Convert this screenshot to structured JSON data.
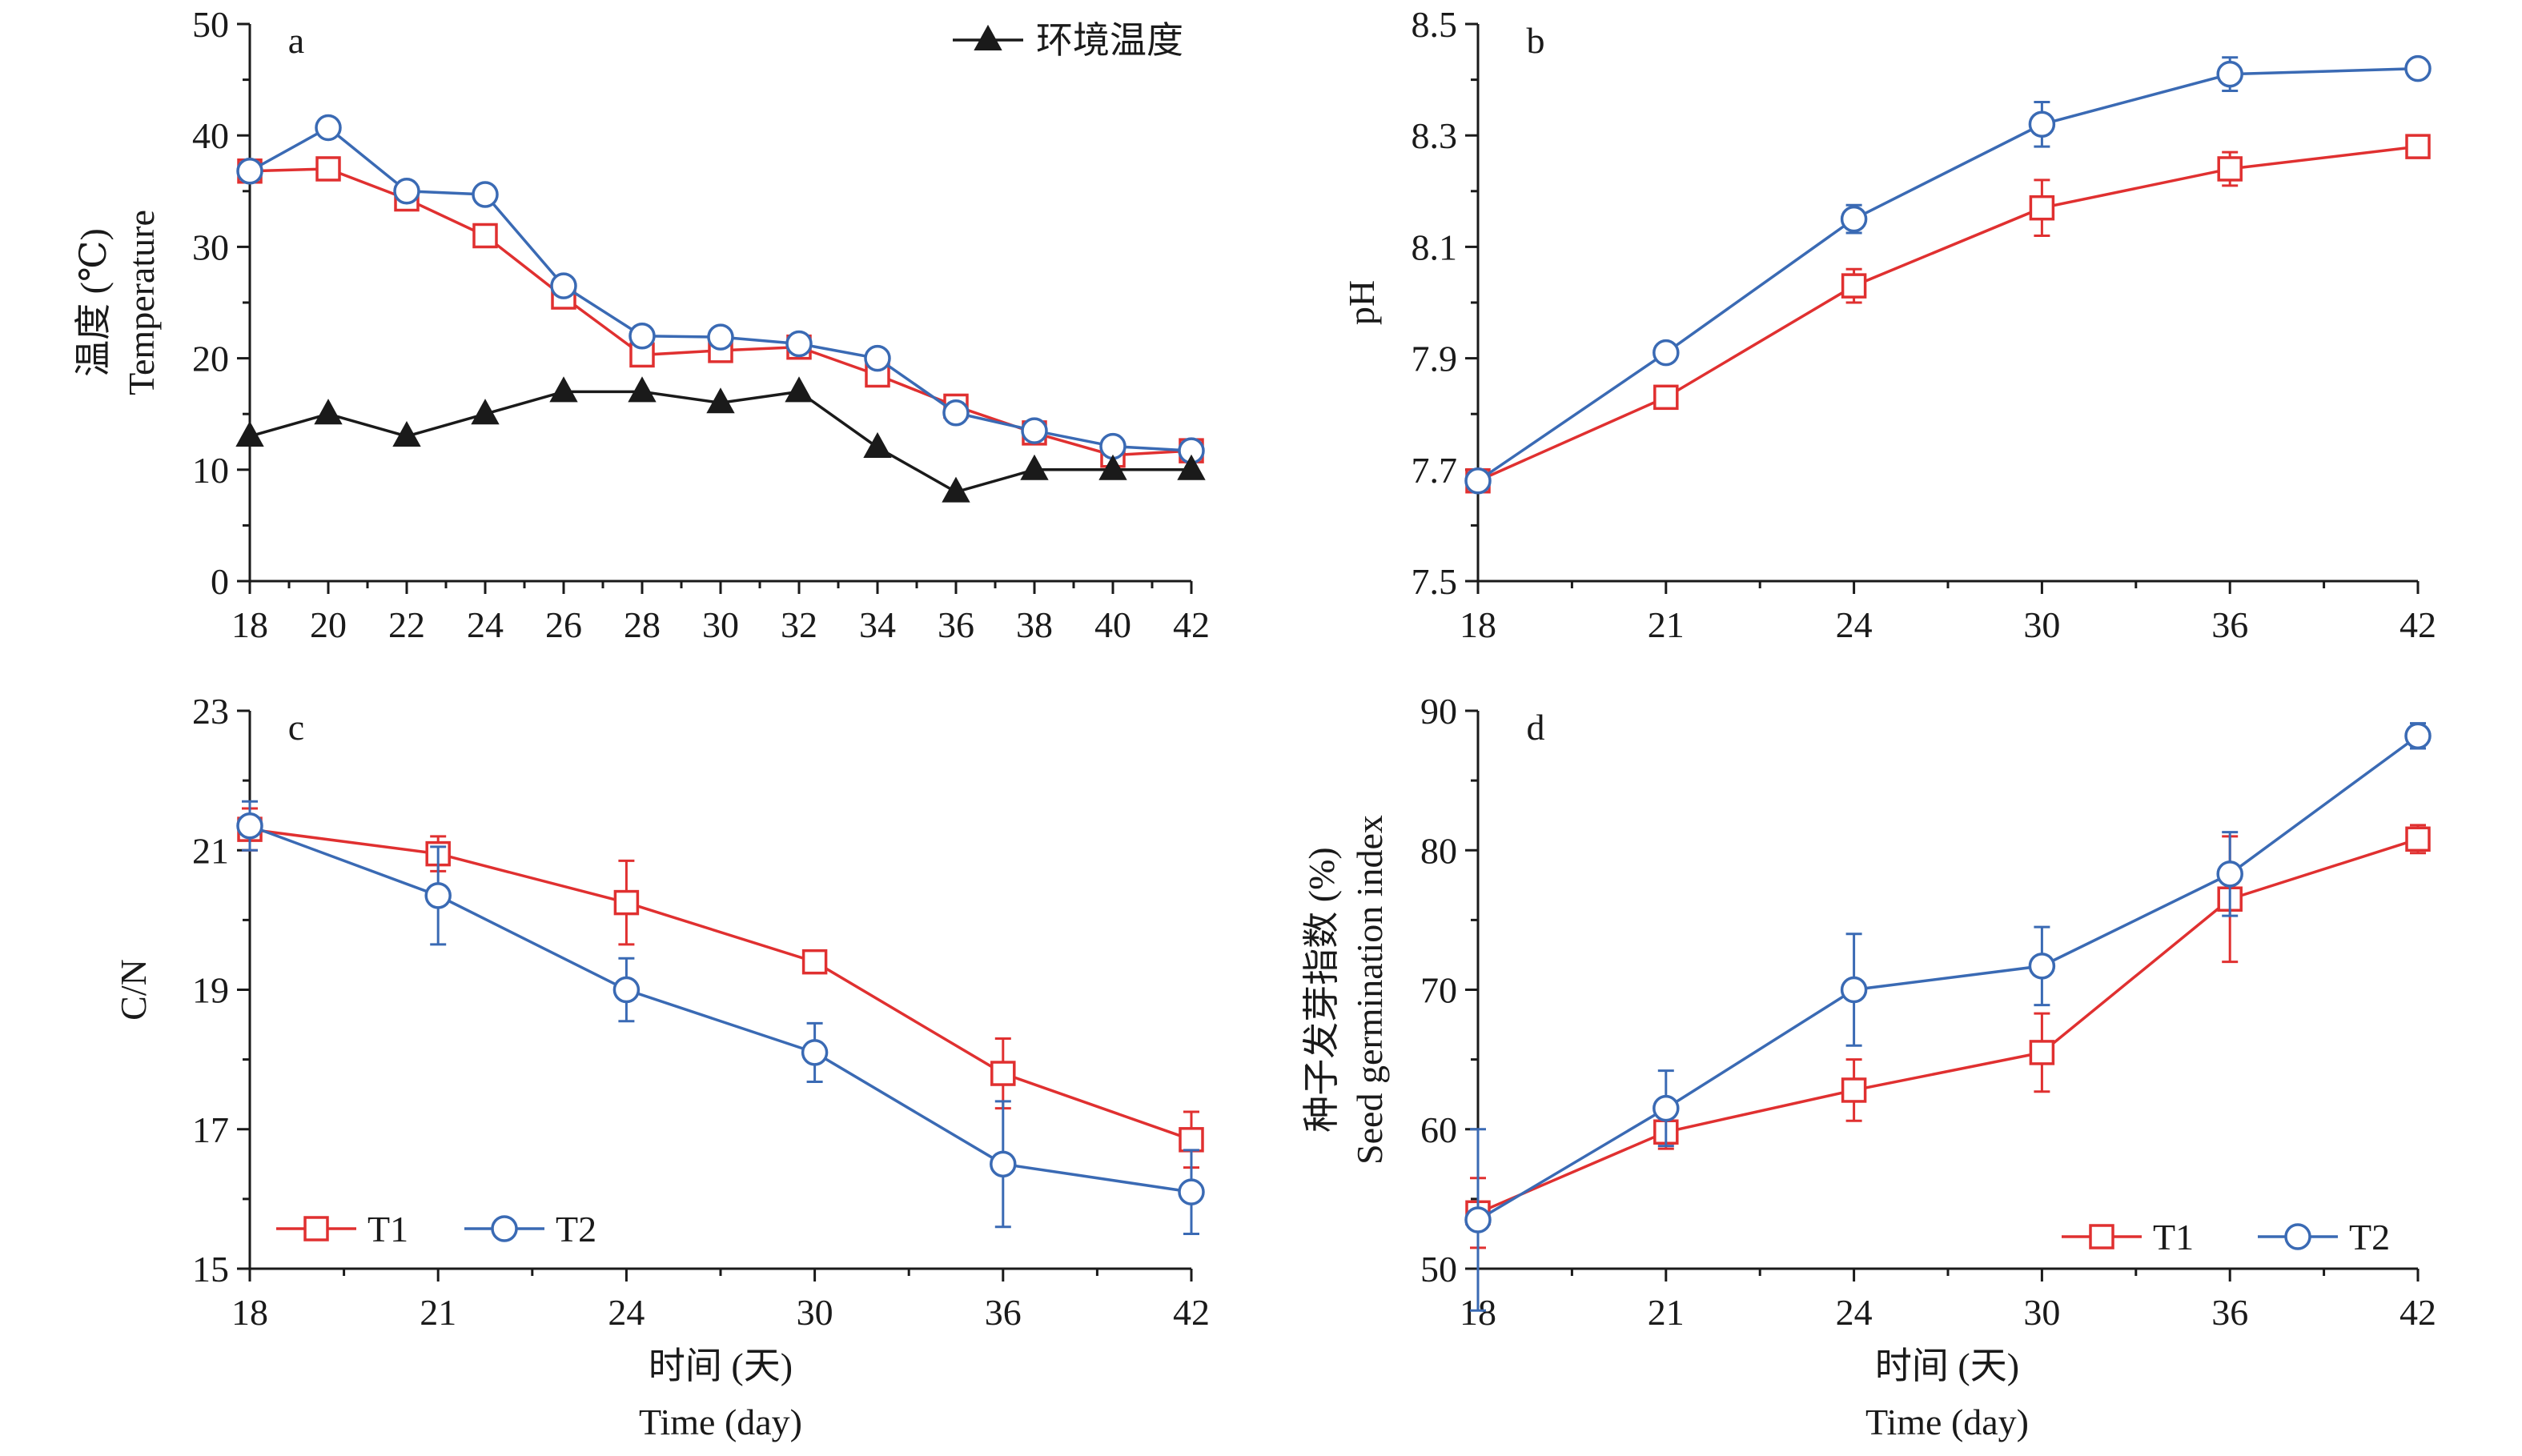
{
  "colors": {
    "t1": "#e03030",
    "t2": "#3a6ab4",
    "ambient": "#1a1a1a",
    "axis": "#1a1a1a"
  },
  "figure": {
    "shared_xlabel_cn": "时间 (天)",
    "shared_xlabel_en": "Time (day)"
  },
  "chart_data": [
    {
      "panel": "a",
      "type": "line",
      "x": [
        18,
        20,
        22,
        24,
        26,
        28,
        30,
        32,
        34,
        36,
        38,
        40,
        42
      ],
      "ylabel_cn": "温度 (℃)",
      "ylabel_en": "Temperature",
      "ylim": [
        0,
        50
      ],
      "yticks": [
        0,
        10,
        20,
        30,
        40,
        50
      ],
      "ytick_labels": [
        "0",
        "10",
        "20",
        "30",
        "40",
        "50"
      ],
      "xtick_labels": [
        "18",
        "20",
        "22",
        "24",
        "26",
        "28",
        "30",
        "32",
        "34",
        "36",
        "38",
        "40",
        "42"
      ],
      "legend": {
        "position": "top-right",
        "entries": [
          "环境温度"
        ]
      },
      "series": [
        {
          "key": "t1",
          "marker": "square",
          "values": [
            36.8,
            37.0,
            34.3,
            31.0,
            25.5,
            20.3,
            20.7,
            21.0,
            18.5,
            15.7,
            13.3,
            11.3,
            11.7
          ]
        },
        {
          "key": "t2",
          "marker": "circle",
          "values": [
            36.8,
            40.7,
            35.0,
            34.7,
            26.5,
            22.0,
            21.9,
            21.3,
            20.0,
            15.1,
            13.5,
            12.1,
            11.7
          ]
        },
        {
          "key": "ambient",
          "name": "环境温度",
          "marker": "triangle",
          "values": [
            13,
            15,
            13,
            15,
            17,
            17,
            16,
            17,
            12,
            8,
            10,
            10,
            10
          ]
        }
      ]
    },
    {
      "panel": "b",
      "type": "line",
      "x": [
        18,
        21,
        24,
        30,
        36,
        42
      ],
      "xtick_labels": [
        "18",
        "21",
        "24",
        "30",
        "36",
        "42"
      ],
      "ylabel_en": "pH",
      "ylim": [
        7.5,
        8.5
      ],
      "yticks": [
        7.5,
        7.7,
        7.9,
        8.1,
        8.3,
        8.5
      ],
      "ytick_labels": [
        "7.5",
        "7.7",
        "7.9",
        "8.1",
        "8.3",
        "8.5"
      ],
      "series": [
        {
          "key": "t1",
          "marker": "square",
          "values": [
            7.68,
            7.83,
            8.03,
            8.17,
            8.24,
            8.28
          ],
          "errors": [
            0.005,
            0.01,
            0.03,
            0.05,
            0.03,
            0.01
          ]
        },
        {
          "key": "t2",
          "marker": "circle",
          "values": [
            7.68,
            7.91,
            8.15,
            8.32,
            8.41,
            8.42
          ],
          "errors": [
            0.005,
            0.01,
            0.025,
            0.04,
            0.03,
            0.01
          ]
        }
      ]
    },
    {
      "panel": "c",
      "type": "line",
      "x": [
        18,
        21,
        24,
        30,
        36,
        42
      ],
      "xtick_labels": [
        "18",
        "21",
        "24",
        "30",
        "36",
        "42"
      ],
      "ylabel_en": "C/N",
      "ylim": [
        15,
        23
      ],
      "yticks": [
        15,
        17,
        19,
        21,
        23
      ],
      "ytick_labels": [
        "15",
        "17",
        "19",
        "21",
        "23"
      ],
      "legend": {
        "position": "bottom-left",
        "entries": [
          "T1",
          "T2"
        ]
      },
      "series": [
        {
          "key": "t1",
          "name": "T1",
          "marker": "square",
          "values": [
            21.3,
            20.95,
            20.25,
            19.4,
            17.8,
            16.85
          ],
          "errors": [
            0.3,
            0.25,
            0.6,
            0.1,
            0.5,
            0.4
          ]
        },
        {
          "key": "t2",
          "name": "T2",
          "marker": "circle",
          "values": [
            21.35,
            20.35,
            19.0,
            18.1,
            16.5,
            16.1
          ],
          "errors": [
            0.35,
            0.7,
            0.45,
            0.42,
            0.9,
            0.6
          ]
        }
      ]
    },
    {
      "panel": "d",
      "type": "line",
      "x": [
        18,
        21,
        24,
        30,
        36,
        42
      ],
      "xtick_labels": [
        "18",
        "21",
        "24",
        "30",
        "36",
        "42"
      ],
      "ylabel_cn": "种子发芽指数 (%)",
      "ylabel_en": "Seed germination index",
      "ylim": [
        50,
        90
      ],
      "yticks": [
        50,
        60,
        70,
        80,
        90
      ],
      "ytick_labels": [
        "50",
        "60",
        "70",
        "80",
        "90"
      ],
      "legend": {
        "position": "bottom-right",
        "entries": [
          "T1",
          "T2"
        ]
      },
      "series": [
        {
          "key": "t1",
          "name": "T1",
          "marker": "square",
          "values": [
            54.0,
            59.8,
            62.8,
            65.5,
            76.5,
            80.8
          ],
          "errors": [
            2.5,
            1.2,
            2.2,
            2.8,
            4.5,
            1.0
          ]
        },
        {
          "key": "t2",
          "name": "T2",
          "marker": "circle",
          "values": [
            53.5,
            61.5,
            70.0,
            71.7,
            78.3,
            88.2
          ],
          "errors": [
            6.5,
            2.7,
            4.0,
            2.8,
            3.0,
            0.9
          ]
        }
      ]
    }
  ]
}
